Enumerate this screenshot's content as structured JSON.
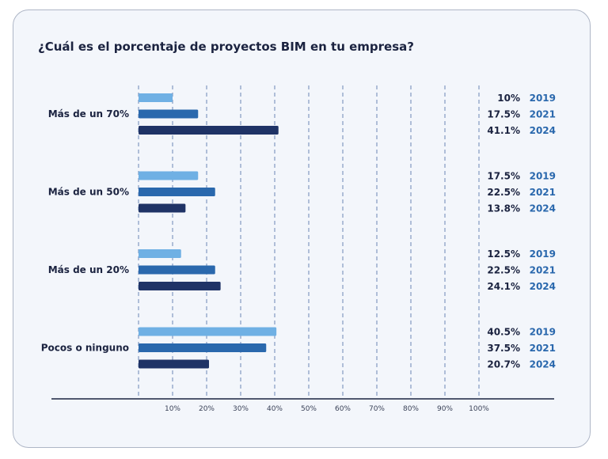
{
  "chart_data": {
    "type": "bar",
    "orientation": "horizontal",
    "title": "¿Cuál es el porcentaje de proyectos BIM en tu empresa?",
    "categories": [
      "Más de un 70%",
      "Más de un 50%",
      "Más de un 20%",
      "Pocos o ninguno"
    ],
    "series": [
      {
        "name": "2019",
        "color": "#6fb0e4",
        "values": [
          10,
          17.5,
          12.5,
          40.5
        ],
        "labels": [
          "10%",
          "17.5%",
          "12.5%",
          "40.5%"
        ]
      },
      {
        "name": "2021",
        "color": "#2a68ad",
        "values": [
          17.5,
          22.5,
          22.5,
          37.5
        ],
        "labels": [
          "17.5%",
          "22.5%",
          "22.5%",
          "37.5%"
        ]
      },
      {
        "name": "2024",
        "color": "#1f3366",
        "values": [
          41.1,
          13.8,
          24.1,
          20.7
        ],
        "labels": [
          "41.1%",
          "13.8%",
          "24.1%",
          "20.7%"
        ]
      }
    ],
    "xlim": [
      0,
      100
    ],
    "xticks": [
      "10%",
      "20%",
      "30%",
      "40%",
      "50%",
      "60%",
      "70%",
      "80%",
      "90%",
      "100%"
    ],
    "grid": "vertical dashed",
    "year_label_color": "#2a68ad"
  }
}
